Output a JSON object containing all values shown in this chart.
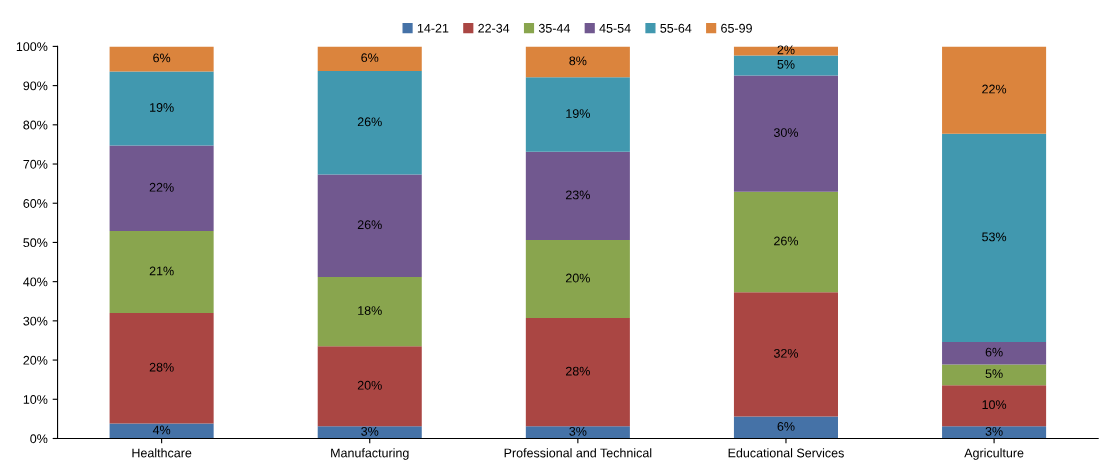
{
  "chart_data": {
    "type": "bar",
    "stacked": true,
    "categories": [
      "Healthcare",
      "Manufacturing",
      "Professional and Technical",
      "Educational Services",
      "Agriculture"
    ],
    "ylim": [
      0,
      100
    ],
    "yticks": [
      {
        "value": 0,
        "label": "0%"
      },
      {
        "value": 10,
        "label": "10%"
      },
      {
        "value": 20,
        "label": "20%"
      },
      {
        "value": 30,
        "label": "30%"
      },
      {
        "value": 40,
        "label": "40%"
      },
      {
        "value": 50,
        "label": "50%"
      },
      {
        "value": 60,
        "label": "60%"
      },
      {
        "value": 70,
        "label": "70%"
      },
      {
        "value": 80,
        "label": "80%"
      },
      {
        "value": 90,
        "label": "90%"
      },
      {
        "value": 100,
        "label": "100%"
      }
    ],
    "legend": "top",
    "grid": false,
    "series": [
      {
        "name": "14-21",
        "color": "#4572a7",
        "values": [
          3.8,
          3.1,
          3.1,
          5.6,
          3.1
        ],
        "value_labels": [
          "4%",
          "3%",
          "3%",
          "6%",
          "3%"
        ]
      },
      {
        "name": "22-34",
        "color": "#aa4643",
        "values": [
          28.2,
          20.4,
          27.6,
          31.7,
          10.5
        ],
        "value_labels": [
          "28%",
          "20%",
          "28%",
          "32%",
          "10%"
        ]
      },
      {
        "name": "35-44",
        "color": "#89a54e",
        "values": [
          20.9,
          17.7,
          19.9,
          25.6,
          5.3
        ],
        "value_labels": [
          "21%",
          "18%",
          "20%",
          "26%",
          "5%"
        ]
      },
      {
        "name": "45-54",
        "color": "#71588f",
        "values": [
          21.8,
          26.1,
          22.5,
          29.7,
          5.7
        ],
        "value_labels": [
          "22%",
          "26%",
          "23%",
          "30%",
          "6%"
        ]
      },
      {
        "name": "55-64",
        "color": "#4198af",
        "values": [
          18.9,
          26.4,
          19.0,
          5.1,
          53.1
        ],
        "value_labels": [
          "19%",
          "26%",
          "19%",
          "5%",
          "53%"
        ]
      },
      {
        "name": "65-99",
        "color": "#db843d",
        "values": [
          6.4,
          6.3,
          7.9,
          2.3,
          22.3
        ],
        "value_labels": [
          "6%",
          "6%",
          "8%",
          "2%",
          "22%"
        ]
      }
    ]
  }
}
